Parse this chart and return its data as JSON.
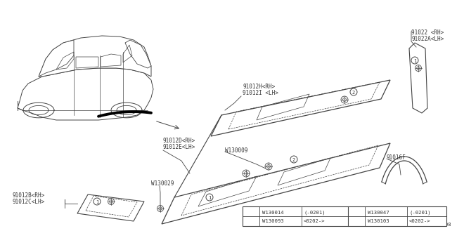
{
  "bg_color": "#ffffff",
  "diagram_id": "A913001108",
  "line_color": "#444444",
  "text_color": "#333333",
  "table": {
    "row1_col1": "W130014",
    "row1_col2": "(-0201)",
    "row2_col1": "W130093",
    "row2_col2": "<0202->",
    "row3_col1": "W130047",
    "row3_col2": "(-0201)",
    "row4_col1": "W130103",
    "row4_col2": "<0202->"
  }
}
